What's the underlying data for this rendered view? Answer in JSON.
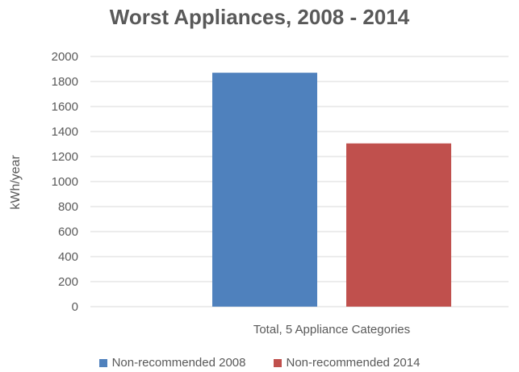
{
  "chart_data": {
    "type": "bar",
    "title": "Worst Appliances, 2008 - 2014",
    "ylabel": "kWh/year",
    "xlabel": "",
    "categories": [
      "Total, 5 Appliance Categories"
    ],
    "series": [
      {
        "name": "Non-recommended 2008",
        "values": [
          1870
        ],
        "color": "#4f81bd"
      },
      {
        "name": "Non-recommended 2014",
        "values": [
          1305
        ],
        "color": "#c0504d"
      }
    ],
    "ylim": [
      0,
      2000
    ],
    "yticks": [
      0,
      200,
      400,
      600,
      800,
      1000,
      1200,
      1400,
      1600,
      1800,
      2000
    ],
    "grid": true,
    "legend_position": "bottom"
  }
}
